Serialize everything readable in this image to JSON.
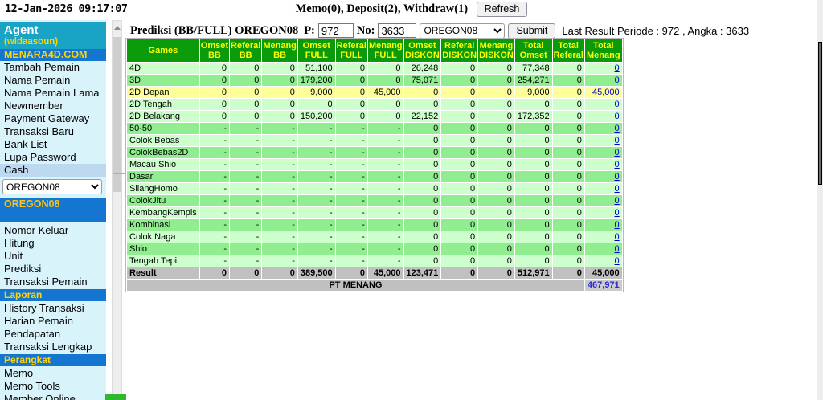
{
  "topbar": {
    "datetime": "12-Jan-2026 09:17:07",
    "memo_line": "Memo(0), Deposit(2), Withdraw(1)",
    "refresh_label": "Refresh"
  },
  "sidebar": {
    "agent_title": "Agent",
    "agent_user": "(wldaasoun)",
    "brand": "MENARA4D.COM",
    "menu_top": [
      "Tambah Pemain",
      "Nama Pemain",
      "Nama Pemain Lama",
      "Newmember",
      "Payment Gateway",
      "Transaksi Baru",
      "Bank List",
      "Lupa Password"
    ],
    "cash_label": "Cash",
    "market_select_value": "OREGON08",
    "market_header": "OREGON08",
    "menu_market": [
      "Nomor Keluar",
      "Hitung",
      "Unit",
      "Prediksi",
      "Transaksi Pemain"
    ],
    "laporan_header": "Laporan",
    "menu_laporan": [
      "History Transaksi",
      "Harian Pemain",
      "Pendapatan",
      "Transaksi Lengkap"
    ],
    "perangkat_header": "Perangkat",
    "menu_perangkat": [
      "Memo",
      "Memo Tools",
      "Member Online"
    ]
  },
  "main": {
    "title": "Prediksi (BB/FULL) OREGON08",
    "p_label": "P:",
    "p_value": "972",
    "no_label": "No:",
    "no_value": "3633",
    "market_select_value": "OREGON08",
    "submit_label": "Submit",
    "last_result": "Last Result Periode : 972 , Angka : 3633"
  },
  "table": {
    "headers": [
      [
        "Games"
      ],
      [
        "Omset",
        "BB"
      ],
      [
        "Referal",
        "BB"
      ],
      [
        "Menang",
        "BB"
      ],
      [
        "Omset",
        "FULL"
      ],
      [
        "Referal",
        "FULL"
      ],
      [
        "Menang",
        "FULL"
      ],
      [
        "Omset",
        "DISKON"
      ],
      [
        "Referal",
        "DISKON"
      ],
      [
        "Menang",
        "DISKON"
      ],
      [
        "Total",
        "Omset"
      ],
      [
        "Total",
        "Referal"
      ],
      [
        "Total",
        "Menang"
      ]
    ],
    "rows": [
      {
        "game": "4D",
        "tone": "light",
        "cells": [
          "0",
          "0",
          "0",
          "51,100",
          "0",
          "0",
          "26,248",
          "0",
          "0",
          "77,348",
          "0"
        ],
        "total_menang": "0"
      },
      {
        "game": "3D",
        "tone": "dark",
        "cells": [
          "0",
          "0",
          "0",
          "179,200",
          "0",
          "0",
          "75,071",
          "0",
          "0",
          "254,271",
          "0"
        ],
        "total_menang": "0"
      },
      {
        "game": "2D Depan",
        "tone": "yellow",
        "cells": [
          "0",
          "0",
          "0",
          "9,000",
          "0",
          "45,000",
          "0",
          "0",
          "0",
          "9,000",
          "0"
        ],
        "total_menang": "45,000"
      },
      {
        "game": "2D Tengah",
        "tone": "light",
        "cells": [
          "0",
          "0",
          "0",
          "0",
          "0",
          "0",
          "0",
          "0",
          "0",
          "0",
          "0"
        ],
        "total_menang": "0"
      },
      {
        "game": "2D Belakang",
        "tone": "light",
        "cells": [
          "0",
          "0",
          "0",
          "150,200",
          "0",
          "0",
          "22,152",
          "0",
          "0",
          "172,352",
          "0"
        ],
        "total_menang": "0"
      },
      {
        "game": "50-50",
        "tone": "dark",
        "cells": [
          "-",
          "-",
          "-",
          "-",
          "-",
          "-",
          "0",
          "0",
          "0",
          "0",
          "0"
        ],
        "total_menang": "0"
      },
      {
        "game": "Colok Bebas",
        "tone": "light",
        "cells": [
          "-",
          "-",
          "-",
          "-",
          "-",
          "-",
          "0",
          "0",
          "0",
          "0",
          "0"
        ],
        "total_menang": "0"
      },
      {
        "game": "ColokBebas2D",
        "tone": "dark",
        "cells": [
          "-",
          "-",
          "-",
          "-",
          "-",
          "-",
          "0",
          "0",
          "0",
          "0",
          "0"
        ],
        "total_menang": "0"
      },
      {
        "game": "Macau Shio",
        "tone": "light",
        "cells": [
          "-",
          "-",
          "-",
          "-",
          "-",
          "-",
          "0",
          "0",
          "0",
          "0",
          "0"
        ],
        "total_menang": "0"
      },
      {
        "game": "Dasar",
        "tone": "dark",
        "cells": [
          "-",
          "-",
          "-",
          "-",
          "-",
          "-",
          "0",
          "0",
          "0",
          "0",
          "0"
        ],
        "total_menang": "0"
      },
      {
        "game": "SilangHomo",
        "tone": "light",
        "cells": [
          "-",
          "-",
          "-",
          "-",
          "-",
          "-",
          "0",
          "0",
          "0",
          "0",
          "0"
        ],
        "total_menang": "0"
      },
      {
        "game": "ColokJitu",
        "tone": "dark",
        "cells": [
          "-",
          "-",
          "-",
          "-",
          "-",
          "-",
          "0",
          "0",
          "0",
          "0",
          "0"
        ],
        "total_menang": "0"
      },
      {
        "game": "KembangKempis",
        "tone": "light",
        "cells": [
          "-",
          "-",
          "-",
          "-",
          "-",
          "-",
          "0",
          "0",
          "0",
          "0",
          "0"
        ],
        "total_menang": "0"
      },
      {
        "game": "Kombinasi",
        "tone": "dark",
        "cells": [
          "-",
          "-",
          "-",
          "-",
          "-",
          "-",
          "0",
          "0",
          "0",
          "0",
          "0"
        ],
        "total_menang": "0"
      },
      {
        "game": "Colok Naga",
        "tone": "light",
        "cells": [
          "-",
          "-",
          "-",
          "-",
          "-",
          "-",
          "0",
          "0",
          "0",
          "0",
          "0"
        ],
        "total_menang": "0"
      },
      {
        "game": "Shio",
        "tone": "dark",
        "cells": [
          "-",
          "-",
          "-",
          "-",
          "-",
          "-",
          "0",
          "0",
          "0",
          "0",
          "0"
        ],
        "total_menang": "0"
      },
      {
        "game": "Tengah Tepi",
        "tone": "light",
        "cells": [
          "-",
          "-",
          "-",
          "-",
          "-",
          "-",
          "0",
          "0",
          "0",
          "0",
          "0"
        ],
        "total_menang": "0"
      }
    ],
    "result_row": {
      "game": "Result",
      "cells": [
        "0",
        "0",
        "0",
        "389,500",
        "0",
        "45,000",
        "123,471",
        "0",
        "0",
        "512,971",
        "0"
      ],
      "total_menang": "45,000"
    },
    "footer": {
      "label": "PT MENANG",
      "value": "467,971"
    }
  },
  "colors": {
    "header_green": "#0a9a0a",
    "row_light": "#ccffcc",
    "row_dark": "#90ee90",
    "row_highlight": "#ffff99",
    "result_gray": "#c0c0c0",
    "sidebar_teal": "#19a3c4",
    "sidebar_blue": "#1576d2",
    "gold": "#ffd400",
    "link_blue": "#0000cc",
    "pt_menang_blue": "#2a2ad4"
  }
}
